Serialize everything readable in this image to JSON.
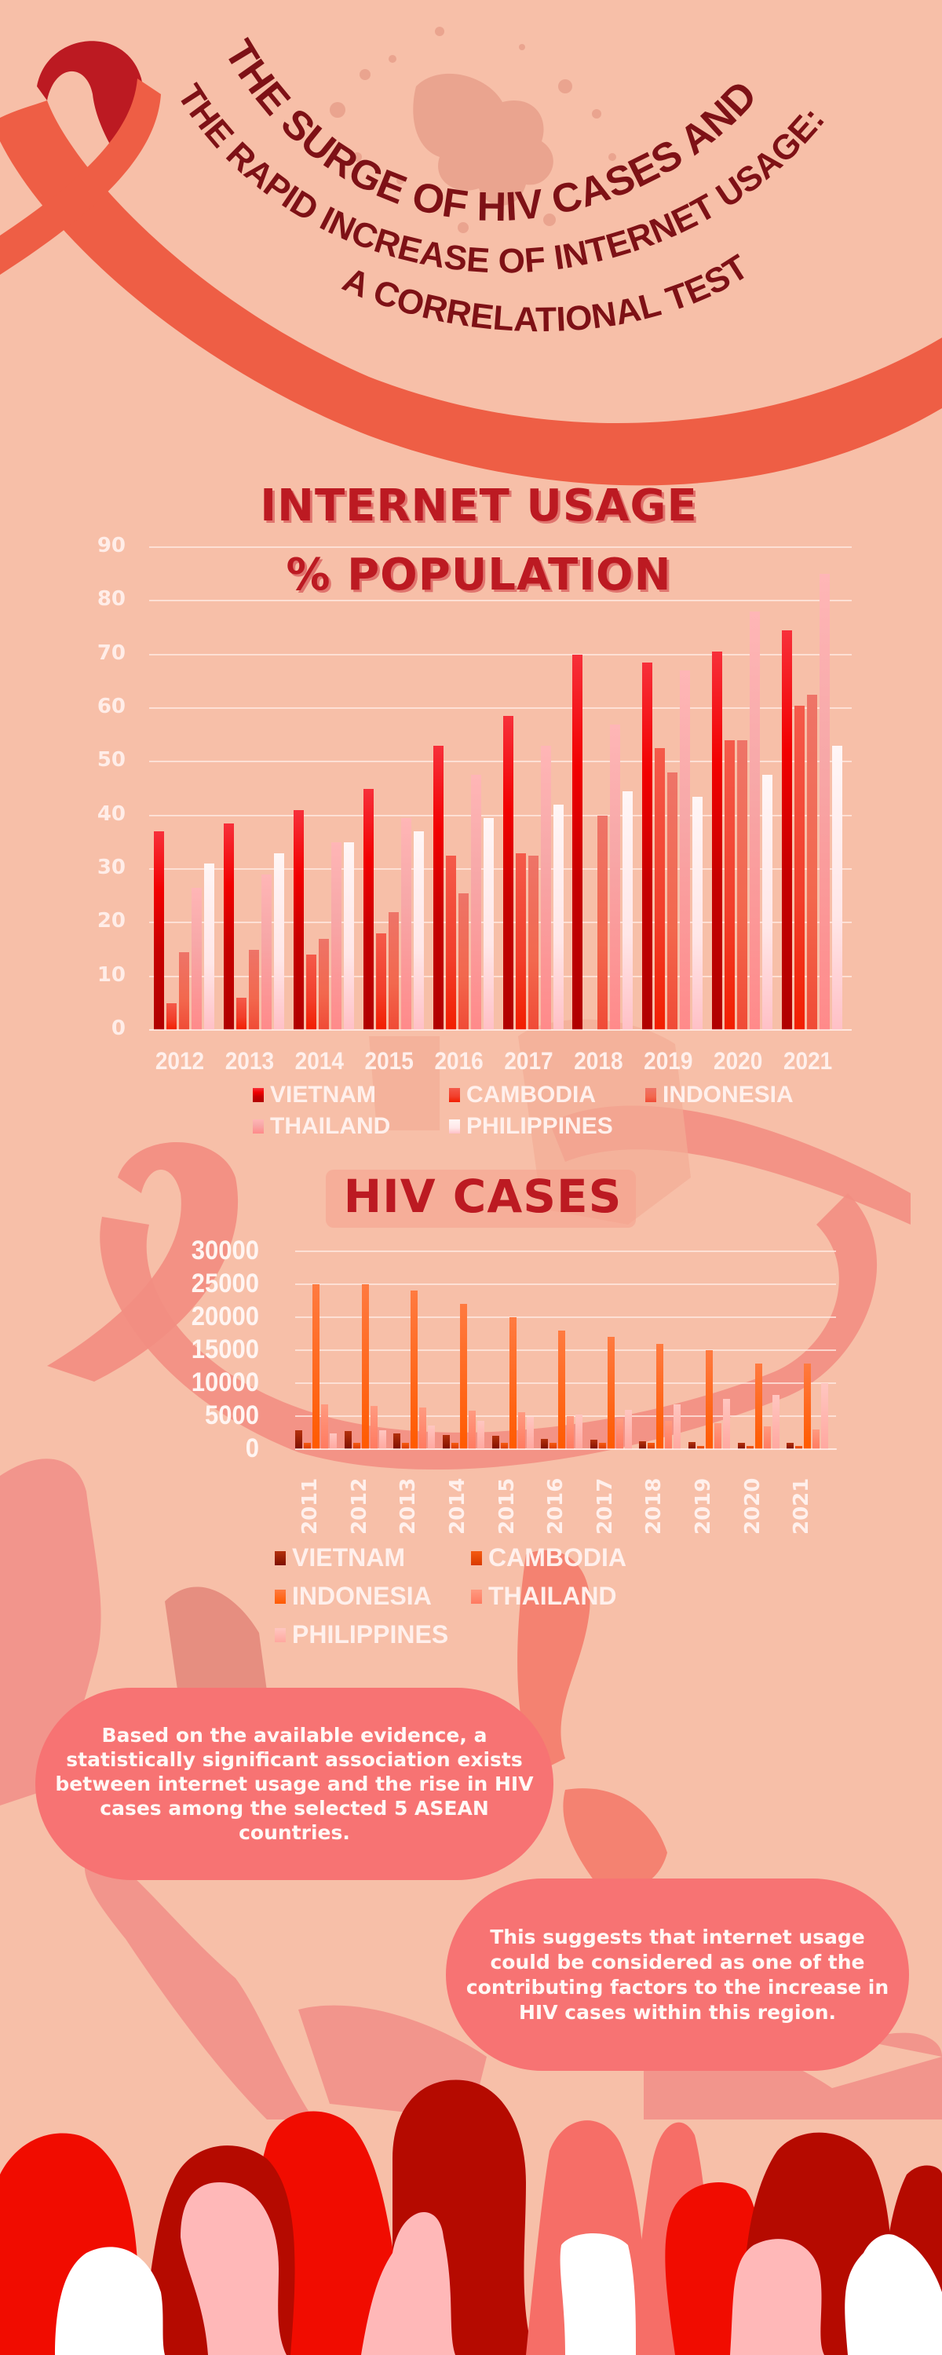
{
  "title": {
    "line1": "THE SURGE OF HIV CASES AND",
    "line2": "THE RAPID INCREASE OF INTERNET USAGE:",
    "line3": "A CORRELATIONAL TEST"
  },
  "colors": {
    "background": "#F7BFA8",
    "title": "#7E1116",
    "heading": "#BC1A22",
    "ribbon": "#EE5E45",
    "ribbon_top": "#BC1A22",
    "bubble": "#F77373"
  },
  "internet_chart": {
    "heading_line1": "INTERNET USAGE",
    "heading_line2": "% POPULATION",
    "yticks": [
      "90",
      "80",
      "70",
      "60",
      "50",
      "40",
      "30",
      "20",
      "10",
      "0"
    ],
    "legend": [
      {
        "label": "VIETNAM",
        "color": "#C40000"
      },
      {
        "label": "CAMBODIA",
        "color": "#E81A0C"
      },
      {
        "label": "INDONESIA",
        "color": "#F0584A"
      },
      {
        "label": "THAILAND",
        "color": "#FFA2A2"
      },
      {
        "label": "PHILIPPINES",
        "color": "#FFE6E6"
      }
    ]
  },
  "hiv_chart": {
    "heading": "HIV CASES",
    "yticks": [
      "30000",
      "25000",
      "20000",
      "15000",
      "10000",
      "5000",
      "0"
    ],
    "legend": [
      {
        "label": "VIETNAM",
        "color": "#A2300C"
      },
      {
        "label": "CAMBODIA",
        "color": "#E5500A"
      },
      {
        "label": "INDONESIA",
        "color": "#FF6518"
      },
      {
        "label": "THAILAND",
        "color": "#FF8A6A"
      },
      {
        "label": "PHILIPPINES",
        "color": "#FFB4AA"
      }
    ]
  },
  "bubbles": {
    "left": [
      "Based on the available evidence, a",
      "statistically significant association exists",
      "between internet usage and the rise in HIV",
      "cases among the selected 5 ASEAN",
      "countries."
    ],
    "right": [
      "This suggests that internet usage",
      "could be considered as one of the",
      "contributing factors to the increase in",
      "HIV cases within this region."
    ]
  },
  "chart_data": [
    {
      "type": "bar",
      "title": "INTERNET USAGE % POPULATION",
      "xlabel": "",
      "ylabel": "% Population",
      "ylim": [
        0,
        90
      ],
      "grid": true,
      "legend_position": "bottom",
      "categories": [
        "2012",
        "2013",
        "2014",
        "2015",
        "2016",
        "2017",
        "2018",
        "2019",
        "2020",
        "2021"
      ],
      "series": [
        {
          "name": "VIETNAM",
          "values": [
            37,
            38.5,
            41,
            45,
            53,
            58.5,
            70,
            68.5,
            70.5,
            74.5
          ]
        },
        {
          "name": "CAMBODIA",
          "values": [
            5,
            6,
            14,
            18,
            32.5,
            33,
            0,
            52.5,
            54,
            60.5
          ]
        },
        {
          "name": "INDONESIA",
          "values": [
            14.5,
            15,
            17,
            22,
            25.5,
            32.5,
            40,
            48,
            54,
            62.5
          ]
        },
        {
          "name": "THAILAND",
          "values": [
            26.5,
            29,
            35,
            39.5,
            47.5,
            53,
            57,
            67,
            78,
            85
          ]
        },
        {
          "name": "PHILIPPINES",
          "values": [
            31,
            33,
            35,
            37,
            39.5,
            42,
            44.5,
            43.5,
            47.5,
            53
          ]
        }
      ]
    },
    {
      "type": "bar",
      "title": "HIV CASES",
      "xlabel": "",
      "ylabel": "Cases",
      "ylim": [
        0,
        30000
      ],
      "grid": true,
      "legend_position": "bottom",
      "categories": [
        "2011",
        "2012",
        "2013",
        "2014",
        "2015",
        "2016",
        "2017",
        "2018",
        "2019",
        "2020",
        "2021"
      ],
      "series": [
        {
          "name": "VIETNAM",
          "values": [
            2900,
            2700,
            2400,
            2200,
            2000,
            1600,
            1400,
            1200,
            1100,
            1000,
            1000
          ]
        },
        {
          "name": "CAMBODIA",
          "values": [
            1000,
            1000,
            1000,
            1000,
            1000,
            1000,
            1000,
            1000,
            500,
            500,
            500
          ]
        },
        {
          "name": "INDONESIA",
          "values": [
            25000,
            25000,
            24000,
            22000,
            20000,
            18000,
            17000,
            16000,
            15000,
            13000,
            13000
          ]
        },
        {
          "name": "THAILAND",
          "values": [
            6800,
            6600,
            6300,
            5800,
            5600,
            5000,
            4600,
            4300,
            3900,
            3500,
            3000
          ]
        },
        {
          "name": "PHILIPPINES",
          "values": [
            2400,
            2800,
            3600,
            4300,
            4900,
            5200,
            6000,
            6800,
            7600,
            8200,
            10000
          ]
        }
      ]
    }
  ]
}
